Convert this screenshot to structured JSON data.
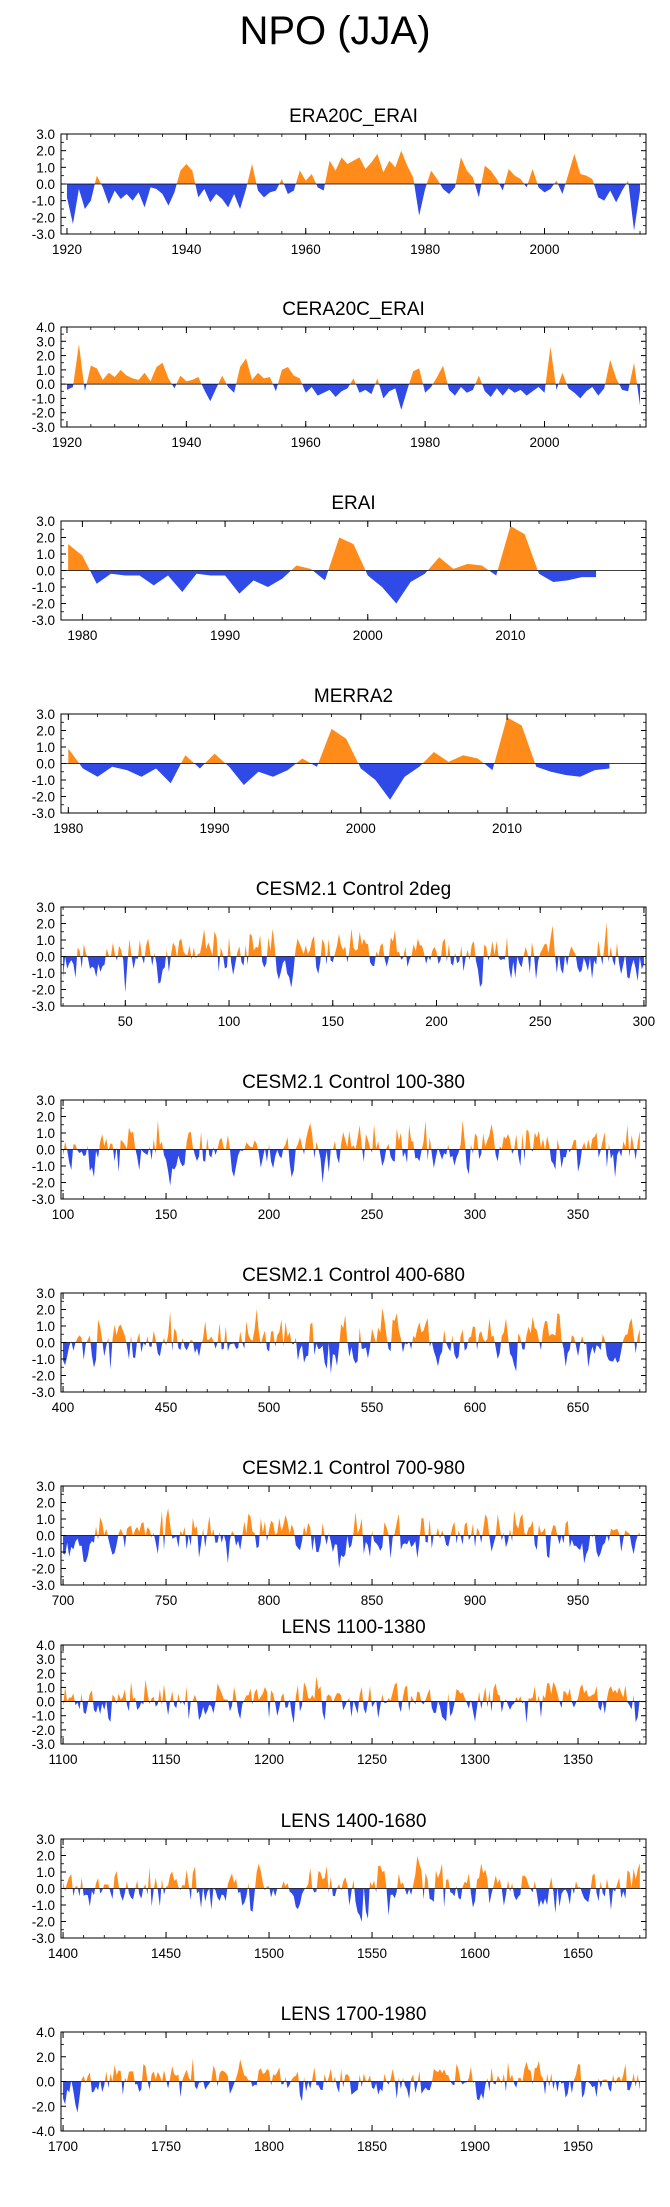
{
  "title": "NPO (JJA)",
  "colors": {
    "positive": "#ff8c1a",
    "negative": "#2f4ae6",
    "axis": "#000000"
  },
  "chart_data": [
    {
      "type": "area",
      "title": "ERA20C_ERAI",
      "x_start": 1920,
      "x_end": 2016,
      "xlim": [
        1919,
        2017
      ],
      "xticks": [
        1920,
        1940,
        1960,
        1980,
        2000
      ],
      "ylim": [
        -3.0,
        3.0
      ],
      "yticks": [
        "3.0",
        "2.0",
        "1.0",
        "0.0",
        "-1.0",
        "-2.0",
        "-3.0"
      ],
      "values": [
        -0.8,
        -2.4,
        -0.3,
        -1.5,
        -1.0,
        0.5,
        -0.2,
        -1.2,
        -0.4,
        -0.9,
        -0.6,
        -1.0,
        -0.5,
        -1.4,
        -0.2,
        -0.3,
        -0.6,
        -1.3,
        -0.5,
        0.8,
        1.2,
        0.8,
        -0.8,
        -0.3,
        -1.1,
        -0.6,
        -0.9,
        -1.4,
        -0.6,
        -1.5,
        -0.3,
        1.2,
        -0.4,
        -0.8,
        -0.5,
        -0.4,
        0.3,
        -0.6,
        -0.4,
        0.8,
        0.2,
        0.6,
        -0.2,
        -0.4,
        1.4,
        0.8,
        1.6,
        1.2,
        1.4,
        1.6,
        0.9,
        1.3,
        1.8,
        0.7,
        1.4,
        1.0,
        2.0,
        1.1,
        0.4,
        -1.9,
        -0.3,
        0.8,
        0.3,
        -0.3,
        -0.6,
        -0.2,
        1.6,
        0.8,
        0.4,
        -0.8,
        1.1,
        0.8,
        0.3,
        -0.4,
        0.9,
        0.5,
        0.3,
        -0.2,
        0.9,
        -0.2,
        -0.5,
        -0.3,
        0.2,
        -0.6,
        0.6,
        1.8,
        0.6,
        0.5,
        0.3,
        -0.8,
        -1.0,
        -0.4,
        -1.1,
        -0.4,
        0.2,
        -2.8,
        -0.4
      ]
    },
    {
      "type": "area",
      "title": "CERA20C_ERAI",
      "x_start": 1920,
      "x_end": 2016,
      "xlim": [
        1919,
        2017
      ],
      "xticks": [
        1920,
        1940,
        1960,
        1980,
        2000
      ],
      "ylim": [
        -3.0,
        4.0
      ],
      "yticks": [
        "4.0",
        "3.0",
        "2.0",
        "1.0",
        "0.0",
        "-1.0",
        "-2.0",
        "-3.0"
      ],
      "values": [
        -0.4,
        -0.2,
        2.8,
        -0.5,
        1.3,
        1.1,
        0.3,
        0.8,
        0.5,
        1.0,
        0.6,
        0.4,
        0.3,
        0.8,
        0.2,
        1.2,
        1.5,
        0.4,
        -0.3,
        0.6,
        0.2,
        0.3,
        0.5,
        -0.4,
        -1.2,
        -0.3,
        0.6,
        -0.2,
        -0.6,
        1.2,
        1.8,
        0.3,
        0.8,
        0.4,
        0.5,
        -0.5,
        1.0,
        1.2,
        0.6,
        0.4,
        -0.6,
        -0.2,
        -0.8,
        -0.6,
        -0.4,
        -0.9,
        -0.5,
        -0.3,
        0.4,
        -0.6,
        -0.4,
        -0.7,
        0.4,
        -1.0,
        -0.5,
        -0.3,
        -1.8,
        -0.4,
        0.9,
        1.1,
        -0.6,
        -0.2,
        0.5,
        1.3,
        -0.4,
        -0.8,
        -0.2,
        -0.6,
        -0.4,
        0.6,
        -0.5,
        -0.9,
        -0.3,
        -0.8,
        -0.3,
        -0.6,
        -0.4,
        -0.8,
        -0.5,
        -0.2,
        -0.6,
        2.6,
        -0.4,
        0.8,
        -0.3,
        -0.6,
        -1.0,
        -0.5,
        -0.2,
        -0.8,
        -0.3,
        1.7,
        0.4,
        -0.4,
        -0.5,
        1.5,
        -1.5
      ]
    },
    {
      "type": "area",
      "title": "ERAI",
      "x_start": 1979,
      "x_end": 2016,
      "xlim": [
        1978.5,
        2019.5
      ],
      "xticks": [
        1980,
        1990,
        2000,
        2010
      ],
      "ylim": [
        -3.0,
        3.0
      ],
      "yticks": [
        "3.0",
        "2.0",
        "1.0",
        "0.0",
        "-1.0",
        "-2.0",
        "-3.0"
      ],
      "values": [
        1.6,
        0.9,
        -0.8,
        -0.2,
        -0.3,
        -0.3,
        -0.9,
        -0.3,
        -1.3,
        -0.2,
        -0.3,
        -0.3,
        -1.4,
        -0.6,
        -1.0,
        -0.5,
        0.3,
        0.1,
        -0.6,
        2.0,
        1.6,
        -0.3,
        -1.0,
        -2.0,
        -0.7,
        -0.2,
        0.8,
        0.1,
        0.4,
        0.3,
        -0.3,
        2.7,
        2.2,
        -0.2,
        -0.7,
        -0.6,
        -0.4,
        -0.4
      ]
    },
    {
      "type": "area",
      "title": "MERRA2",
      "x_start": 1980,
      "x_end": 2017,
      "xlim": [
        1979.5,
        2019.5
      ],
      "xticks": [
        1980,
        1990,
        2000,
        2010
      ],
      "ylim": [
        -3.0,
        3.0
      ],
      "yticks": [
        "3.0",
        "2.0",
        "1.0",
        "0.0",
        "-1.0",
        "-2.0",
        "-3.0"
      ],
      "values": [
        0.9,
        -0.3,
        -0.8,
        -0.2,
        -0.4,
        -0.8,
        -0.3,
        -1.2,
        0.5,
        -0.3,
        0.6,
        -0.2,
        -1.3,
        -0.5,
        -0.8,
        -0.4,
        0.3,
        -0.2,
        2.1,
        1.5,
        -0.3,
        -1.0,
        -2.2,
        -0.8,
        -0.2,
        0.7,
        0.1,
        0.5,
        0.3,
        -0.4,
        2.8,
        2.3,
        -0.2,
        -0.5,
        -0.7,
        -0.8,
        -0.4,
        -0.3
      ]
    },
    {
      "type": "area",
      "title": "CESM2.1 Control 2deg",
      "x_start": 20,
      "x_end": 300,
      "xlim": [
        19,
        301
      ],
      "xticks": [
        50,
        100,
        150,
        200,
        250,
        300
      ],
      "ylim": [
        -3.0,
        3.0
      ],
      "yticks": [
        "3.0",
        "2.0",
        "1.0",
        "0.0",
        "-1.0",
        "-2.0",
        "-3.0"
      ],
      "generator": {
        "seed": 11,
        "amplitude": 0.95,
        "n": 281
      }
    },
    {
      "type": "area",
      "title": "CESM2.1 Control 100-380",
      "x_start": 100,
      "x_end": 380,
      "xlim": [
        99,
        383
      ],
      "xticks": [
        100,
        150,
        200,
        250,
        300,
        350
      ],
      "ylim": [
        -3.0,
        3.0
      ],
      "yticks": [
        "3.0",
        "2.0",
        "1.0",
        "0.0",
        "-1.0",
        "-2.0",
        "-3.0"
      ],
      "generator": {
        "seed": 23,
        "amplitude": 0.95,
        "n": 281
      }
    },
    {
      "type": "area",
      "title": "CESM2.1 Control 400-680",
      "x_start": 400,
      "x_end": 680,
      "xlim": [
        399,
        683
      ],
      "xticks": [
        400,
        450,
        500,
        550,
        600,
        650
      ],
      "ylim": [
        -3.0,
        3.0
      ],
      "yticks": [
        "3.0",
        "2.0",
        "1.0",
        "0.0",
        "-1.0",
        "-2.0",
        "-3.0"
      ],
      "generator": {
        "seed": 37,
        "amplitude": 0.95,
        "n": 281
      }
    },
    {
      "type": "area",
      "title": "CESM2.1 Control 700-980",
      "x_start": 700,
      "x_end": 980,
      "xlim": [
        699,
        983
      ],
      "xticks": [
        700,
        750,
        800,
        850,
        900,
        950
      ],
      "ylim": [
        -3.0,
        3.0
      ],
      "yticks": [
        "3.0",
        "2.0",
        "1.0",
        "0.0",
        "-1.0",
        "-2.0",
        "-3.0"
      ],
      "generator": {
        "seed": 53,
        "amplitude": 0.95,
        "n": 281
      }
    },
    {
      "type": "area",
      "title": "LENS 1100-1380",
      "x_start": 1100,
      "x_end": 1380,
      "xlim": [
        1099,
        1383
      ],
      "xticks": [
        1100,
        1150,
        1200,
        1250,
        1300,
        1350
      ],
      "ylim": [
        -3.0,
        4.0
      ],
      "yticks": [
        "4.0",
        "3.0",
        "2.0",
        "1.0",
        "0.0",
        "-1.0",
        "-2.0",
        "-3.0"
      ],
      "generator": {
        "seed": 71,
        "amplitude": 0.9,
        "n": 281
      }
    },
    {
      "type": "area",
      "title": "LENS 1400-1680",
      "x_start": 1400,
      "x_end": 1680,
      "xlim": [
        1399,
        1683
      ],
      "xticks": [
        1400,
        1450,
        1500,
        1550,
        1600,
        1650
      ],
      "ylim": [
        -3.0,
        3.0
      ],
      "yticks": [
        "3.0",
        "2.0",
        "1.0",
        "0.0",
        "-1.0",
        "-2.0",
        "-3.0"
      ],
      "generator": {
        "seed": 89,
        "amplitude": 0.95,
        "n": 281
      }
    },
    {
      "type": "area",
      "title": "LENS 1700-1980",
      "x_start": 1700,
      "x_end": 1980,
      "xlim": [
        1699,
        1983
      ],
      "xticks": [
        1700,
        1750,
        1800,
        1850,
        1900,
        1950
      ],
      "ylim": [
        -4.0,
        4.0
      ],
      "yticks": [
        "4.0",
        "2.0",
        "0.0",
        "-2.0",
        "-4.0"
      ],
      "generator": {
        "seed": 97,
        "amplitude": 0.95,
        "n": 281
      }
    }
  ]
}
